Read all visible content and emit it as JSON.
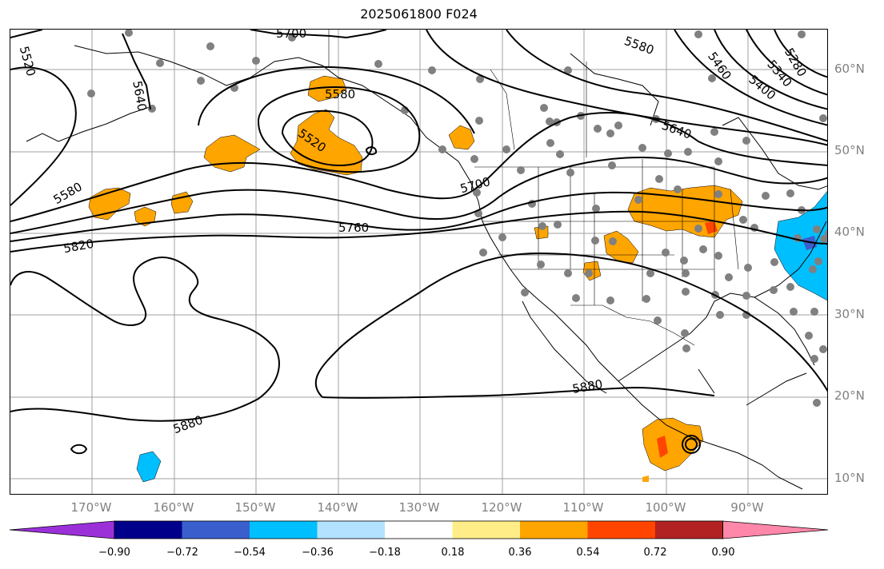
{
  "title": "2025061800 F024",
  "lat_labels": [
    "60°N",
    "50°N",
    "40°N",
    "30°N",
    "20°N",
    "10°N"
  ],
  "lon_labels": [
    "170°W",
    "160°W",
    "150°W",
    "140°W",
    "130°W",
    "120°W",
    "110°W",
    "100°W",
    "90°W"
  ],
  "contour_labels": [
    "5520",
    "5700",
    "5640",
    "5580",
    "5520",
    "5580",
    "5580",
    "5820",
    "5760",
    "5700",
    "5640",
    "5460",
    "5400",
    "5340",
    "5280",
    "5880",
    "5880"
  ],
  "colorbar": {
    "ticks": [
      "−0.90",
      "−0.72",
      "−0.54",
      "−0.36",
      "−0.18",
      "0.18",
      "0.36",
      "0.54",
      "0.72",
      "0.90"
    ],
    "colors": [
      "#9b30d9",
      "#00008b",
      "#3a5fcd",
      "#00bfff",
      "#b2e2ff",
      "#ffffff",
      "#ffee88",
      "#ffa500",
      "#ff4500",
      "#b22222",
      "#ff88aa"
    ]
  },
  "colors": {
    "contour": "#000000",
    "coast": "#000000",
    "grid": "#a0a0a0",
    "station": "#808080",
    "shade_orange": "#ffa500",
    "shade_red": "#ff4500",
    "shade_blue": "#00bfff"
  }
}
